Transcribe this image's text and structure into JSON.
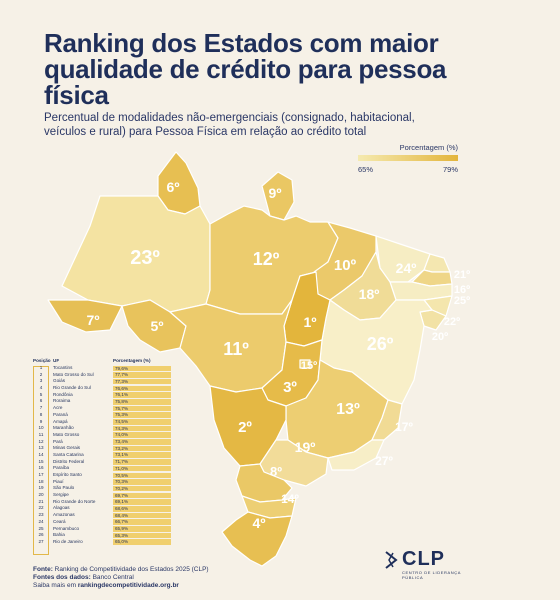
{
  "title": "Ranking dos Estados com maior qualidade de crédito para pessoa física",
  "subtitle": "Percentual de modalidades não-emergenciais (consignado, habitacional, veículos e rural) para Pessoa Física em relação ao crédito total",
  "legend": {
    "title": "Porcentagem (%)",
    "min_label": "65%",
    "max_label": "79%",
    "color_min": "#f5eab0",
    "color_max": "#e3b53c"
  },
  "map_labels": {
    "RR": "6º",
    "AP": "9º",
    "AM": "23º",
    "PA": "12º",
    "MA": "10º",
    "CE": "24º",
    "RN": "21º",
    "PB": "16º",
    "PE": "25º",
    "AL": "22º",
    "SE": "20º",
    "PI": "18º",
    "AC": "7º",
    "RO": "5º",
    "TO": "1º",
    "BA": "26º",
    "MT": "11º",
    "DF": "15º",
    "GO": "3º",
    "MG": "13º",
    "ES": "17º",
    "MS": "2º",
    "SP": "19º",
    "RJ": "27º",
    "PR": "8º",
    "SC": "14º",
    "RS": "4º"
  },
  "table": {
    "headers": {
      "pos": "Posição",
      "uf": "UF",
      "pct": "Porcentagem (%)"
    },
    "rows": [
      {
        "pos": "1",
        "uf": "Tocantins",
        "pct": "79,6%"
      },
      {
        "pos": "2",
        "uf": "Mato Grosso do Sul",
        "pct": "77,7%"
      },
      {
        "pos": "3",
        "uf": "Goiás",
        "pct": "77,3%"
      },
      {
        "pos": "4",
        "uf": "Rio Grande do Sul",
        "pct": "76,6%"
      },
      {
        "pos": "5",
        "uf": "Rondônia",
        "pct": "76,1%"
      },
      {
        "pos": "6",
        "uf": "Roraima",
        "pct": "75,8%"
      },
      {
        "pos": "7",
        "uf": "Acre",
        "pct": "75,7%"
      },
      {
        "pos": "8",
        "uf": "Paraná",
        "pct": "75,3%"
      },
      {
        "pos": "9",
        "uf": "Amapá",
        "pct": "74,5%"
      },
      {
        "pos": "10",
        "uf": "Maranhão",
        "pct": "74,3%"
      },
      {
        "pos": "11",
        "uf": "Mato Grosso",
        "pct": "74,0%"
      },
      {
        "pos": "12",
        "uf": "Pará",
        "pct": "73,4%"
      },
      {
        "pos": "13",
        "uf": "Minas Gerais",
        "pct": "73,2%"
      },
      {
        "pos": "14",
        "uf": "Santa Catarina",
        "pct": "73,1%"
      },
      {
        "pos": "15",
        "uf": "Distrito Federal",
        "pct": "71,7%"
      },
      {
        "pos": "16",
        "uf": "Paraíba",
        "pct": "71,0%"
      },
      {
        "pos": "17",
        "uf": "Espírito Santo",
        "pct": "70,5%"
      },
      {
        "pos": "18",
        "uf": "Piauí",
        "pct": "70,3%"
      },
      {
        "pos": "19",
        "uf": "São Paulo",
        "pct": "70,2%"
      },
      {
        "pos": "20",
        "uf": "Sergipe",
        "pct": "69,7%"
      },
      {
        "pos": "21",
        "uf": "Rio Grande do Norte",
        "pct": "69,1%"
      },
      {
        "pos": "22",
        "uf": "Alagoas",
        "pct": "68,6%"
      },
      {
        "pos": "23",
        "uf": "Amazonas",
        "pct": "68,4%"
      },
      {
        "pos": "24",
        "uf": "Ceará",
        "pct": "66,7%"
      },
      {
        "pos": "25",
        "uf": "Pernambuco",
        "pct": "65,9%"
      },
      {
        "pos": "26",
        "uf": "Bahia",
        "pct": "65,3%"
      },
      {
        "pos": "27",
        "uf": "Rio de Janeiro",
        "pct": "65,0%"
      }
    ]
  },
  "footer": {
    "source_label": "Fonte:",
    "source_text": "Ranking de Competitividade dos Estados 2025 (CLP)",
    "data_label": "Fontes dos dados:",
    "data_text": "Banco Central",
    "more_text": "Saiba mais em",
    "more_link": "rankingdecompetitividade.org.br"
  },
  "logo": {
    "name": "CLP",
    "tagline": "CENTRO DE LIDERANÇA PÚBLICA"
  }
}
